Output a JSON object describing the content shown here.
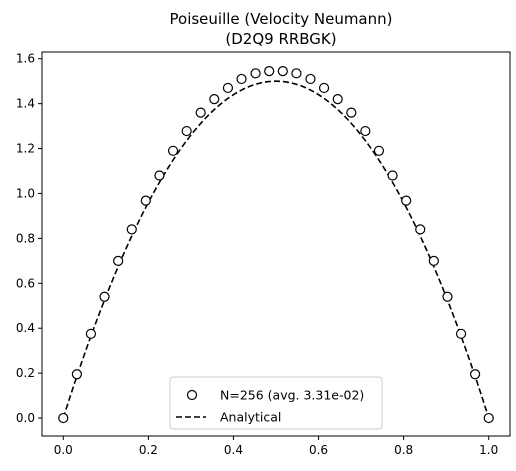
{
  "chart_data": {
    "type": "line",
    "title_line1": "Poiseuille (Velocity Neumann)",
    "title_line2": "(D2Q9 RRBGK)",
    "xlabel": "",
    "ylabel": "",
    "xlim": [
      -0.05,
      1.05
    ],
    "ylim": [
      -0.08,
      1.63
    ],
    "xticks": [
      0.0,
      0.2,
      0.4,
      0.6,
      0.8,
      1.0
    ],
    "xtick_labels": [
      "0.0",
      "0.2",
      "0.4",
      "0.6",
      "0.8",
      "1.0"
    ],
    "yticks": [
      0.0,
      0.2,
      0.4,
      0.6,
      0.8,
      1.0,
      1.2,
      1.4,
      1.6
    ],
    "ytick_labels": [
      "0.0",
      "0.2",
      "0.4",
      "0.6",
      "0.8",
      "1.0",
      "1.2",
      "1.4",
      "1.6"
    ],
    "grid": false,
    "legend_position": "lower-center",
    "series": [
      {
        "name": "N=256 (avg. 3.31e-02)",
        "style": "open-circle-markers",
        "color": "#000000",
        "x": [
          0.0,
          0.032,
          0.065,
          0.097,
          0.129,
          0.161,
          0.194,
          0.226,
          0.258,
          0.29,
          0.323,
          0.355,
          0.387,
          0.419,
          0.452,
          0.484,
          0.516,
          0.548,
          0.581,
          0.613,
          0.645,
          0.677,
          0.71,
          0.742,
          0.774,
          0.806,
          0.839,
          0.871,
          0.903,
          0.935,
          0.968,
          1.0
        ],
        "y": [
          0.0,
          0.195,
          0.375,
          0.54,
          0.7,
          0.84,
          0.968,
          1.08,
          1.19,
          1.278,
          1.36,
          1.42,
          1.47,
          1.51,
          1.535,
          1.545,
          1.545,
          1.535,
          1.51,
          1.47,
          1.42,
          1.36,
          1.278,
          1.19,
          1.08,
          0.968,
          0.84,
          0.7,
          0.54,
          0.375,
          0.195,
          0.0
        ]
      },
      {
        "name": "Analytical",
        "style": "dashed-line",
        "color": "#000000",
        "formula": "6*x*(1-x)"
      }
    ]
  }
}
